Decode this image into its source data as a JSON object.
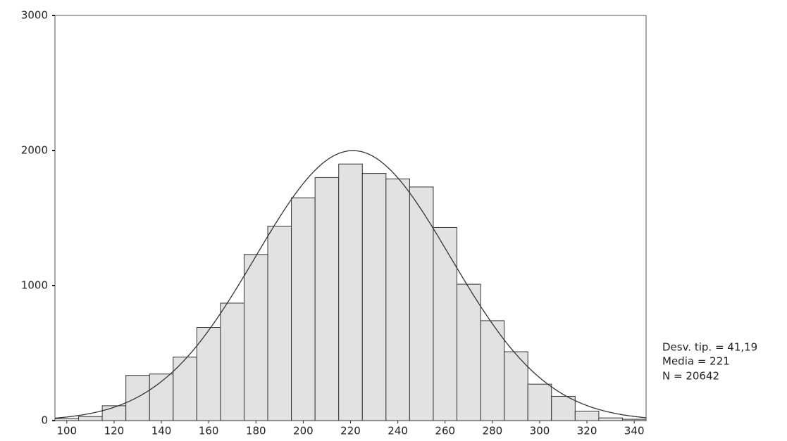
{
  "chart_data": {
    "type": "histogram",
    "bins": [
      95,
      105,
      115,
      125,
      135,
      145,
      155,
      165,
      175,
      185,
      195,
      205,
      215,
      225,
      235,
      245,
      255,
      265,
      275,
      285,
      295,
      305,
      315,
      325,
      335,
      345
    ],
    "values": [
      15,
      30,
      110,
      335,
      345,
      470,
      690,
      870,
      1230,
      1440,
      1650,
      1800,
      1900,
      1830,
      1790,
      1730,
      1430,
      1010,
      740,
      510,
      270,
      180,
      70,
      20,
      10
    ],
    "color": "#e2e2e2",
    "xlim": [
      95,
      345
    ],
    "xticks": [
      100,
      120,
      140,
      160,
      180,
      200,
      220,
      240,
      260,
      280,
      300,
      320,
      340
    ],
    "ylim": [
      0,
      3000
    ],
    "yticks": [
      0,
      1000,
      2000,
      3000
    ],
    "curve": {
      "mean": 221,
      "sd": 41.19,
      "n": 20642
    },
    "annotations": [
      "Desv. tip. = 41,19",
      "Media = 221",
      "N = 20642"
    ]
  }
}
